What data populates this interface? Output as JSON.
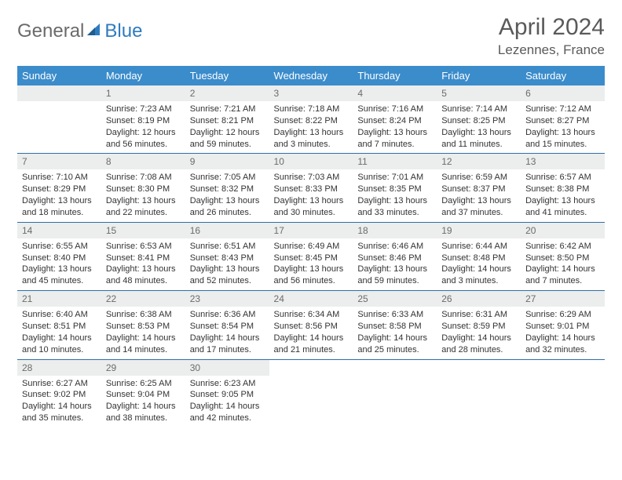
{
  "logo": {
    "textA": "General",
    "textB": "Blue"
  },
  "header": {
    "title": "April 2024",
    "location": "Lezennes, France"
  },
  "weekdays": [
    "Sunday",
    "Monday",
    "Tuesday",
    "Wednesday",
    "Thursday",
    "Friday",
    "Saturday"
  ],
  "colors": {
    "header_bg": "#3b8ccb",
    "header_text": "#ffffff",
    "daynum_bg": "#eceded",
    "daynum_text": "#6b6b6b",
    "row_divider": "#2f6fa8",
    "logo_gray": "#6a6a6a",
    "logo_blue": "#2f7bbf",
    "body_bg": "#ffffff",
    "text": "#333333"
  },
  "typography": {
    "title_fontsize": 30,
    "location_fontsize": 17,
    "weekday_fontsize": 13,
    "daynum_fontsize": 12,
    "cell_fontsize": 11,
    "logo_fontsize": 24
  },
  "layout": {
    "columns": 7,
    "rows": 5,
    "first_weekday_index": 1
  },
  "days": [
    {
      "n": 1,
      "sunrise": "7:23 AM",
      "sunset": "8:19 PM",
      "daylight": "12 hours and 56 minutes."
    },
    {
      "n": 2,
      "sunrise": "7:21 AM",
      "sunset": "8:21 PM",
      "daylight": "12 hours and 59 minutes."
    },
    {
      "n": 3,
      "sunrise": "7:18 AM",
      "sunset": "8:22 PM",
      "daylight": "13 hours and 3 minutes."
    },
    {
      "n": 4,
      "sunrise": "7:16 AM",
      "sunset": "8:24 PM",
      "daylight": "13 hours and 7 minutes."
    },
    {
      "n": 5,
      "sunrise": "7:14 AM",
      "sunset": "8:25 PM",
      "daylight": "13 hours and 11 minutes."
    },
    {
      "n": 6,
      "sunrise": "7:12 AM",
      "sunset": "8:27 PM",
      "daylight": "13 hours and 15 minutes."
    },
    {
      "n": 7,
      "sunrise": "7:10 AM",
      "sunset": "8:29 PM",
      "daylight": "13 hours and 18 minutes."
    },
    {
      "n": 8,
      "sunrise": "7:08 AM",
      "sunset": "8:30 PM",
      "daylight": "13 hours and 22 minutes."
    },
    {
      "n": 9,
      "sunrise": "7:05 AM",
      "sunset": "8:32 PM",
      "daylight": "13 hours and 26 minutes."
    },
    {
      "n": 10,
      "sunrise": "7:03 AM",
      "sunset": "8:33 PM",
      "daylight": "13 hours and 30 minutes."
    },
    {
      "n": 11,
      "sunrise": "7:01 AM",
      "sunset": "8:35 PM",
      "daylight": "13 hours and 33 minutes."
    },
    {
      "n": 12,
      "sunrise": "6:59 AM",
      "sunset": "8:37 PM",
      "daylight": "13 hours and 37 minutes."
    },
    {
      "n": 13,
      "sunrise": "6:57 AM",
      "sunset": "8:38 PM",
      "daylight": "13 hours and 41 minutes."
    },
    {
      "n": 14,
      "sunrise": "6:55 AM",
      "sunset": "8:40 PM",
      "daylight": "13 hours and 45 minutes."
    },
    {
      "n": 15,
      "sunrise": "6:53 AM",
      "sunset": "8:41 PM",
      "daylight": "13 hours and 48 minutes."
    },
    {
      "n": 16,
      "sunrise": "6:51 AM",
      "sunset": "8:43 PM",
      "daylight": "13 hours and 52 minutes."
    },
    {
      "n": 17,
      "sunrise": "6:49 AM",
      "sunset": "8:45 PM",
      "daylight": "13 hours and 56 minutes."
    },
    {
      "n": 18,
      "sunrise": "6:46 AM",
      "sunset": "8:46 PM",
      "daylight": "13 hours and 59 minutes."
    },
    {
      "n": 19,
      "sunrise": "6:44 AM",
      "sunset": "8:48 PM",
      "daylight": "14 hours and 3 minutes."
    },
    {
      "n": 20,
      "sunrise": "6:42 AM",
      "sunset": "8:50 PM",
      "daylight": "14 hours and 7 minutes."
    },
    {
      "n": 21,
      "sunrise": "6:40 AM",
      "sunset": "8:51 PM",
      "daylight": "14 hours and 10 minutes."
    },
    {
      "n": 22,
      "sunrise": "6:38 AM",
      "sunset": "8:53 PM",
      "daylight": "14 hours and 14 minutes."
    },
    {
      "n": 23,
      "sunrise": "6:36 AM",
      "sunset": "8:54 PM",
      "daylight": "14 hours and 17 minutes."
    },
    {
      "n": 24,
      "sunrise": "6:34 AM",
      "sunset": "8:56 PM",
      "daylight": "14 hours and 21 minutes."
    },
    {
      "n": 25,
      "sunrise": "6:33 AM",
      "sunset": "8:58 PM",
      "daylight": "14 hours and 25 minutes."
    },
    {
      "n": 26,
      "sunrise": "6:31 AM",
      "sunset": "8:59 PM",
      "daylight": "14 hours and 28 minutes."
    },
    {
      "n": 27,
      "sunrise": "6:29 AM",
      "sunset": "9:01 PM",
      "daylight": "14 hours and 32 minutes."
    },
    {
      "n": 28,
      "sunrise": "6:27 AM",
      "sunset": "9:02 PM",
      "daylight": "14 hours and 35 minutes."
    },
    {
      "n": 29,
      "sunrise": "6:25 AM",
      "sunset": "9:04 PM",
      "daylight": "14 hours and 38 minutes."
    },
    {
      "n": 30,
      "sunrise": "6:23 AM",
      "sunset": "9:05 PM",
      "daylight": "14 hours and 42 minutes."
    }
  ],
  "labels": {
    "sunrise": "Sunrise:",
    "sunset": "Sunset:",
    "daylight": "Daylight:"
  }
}
